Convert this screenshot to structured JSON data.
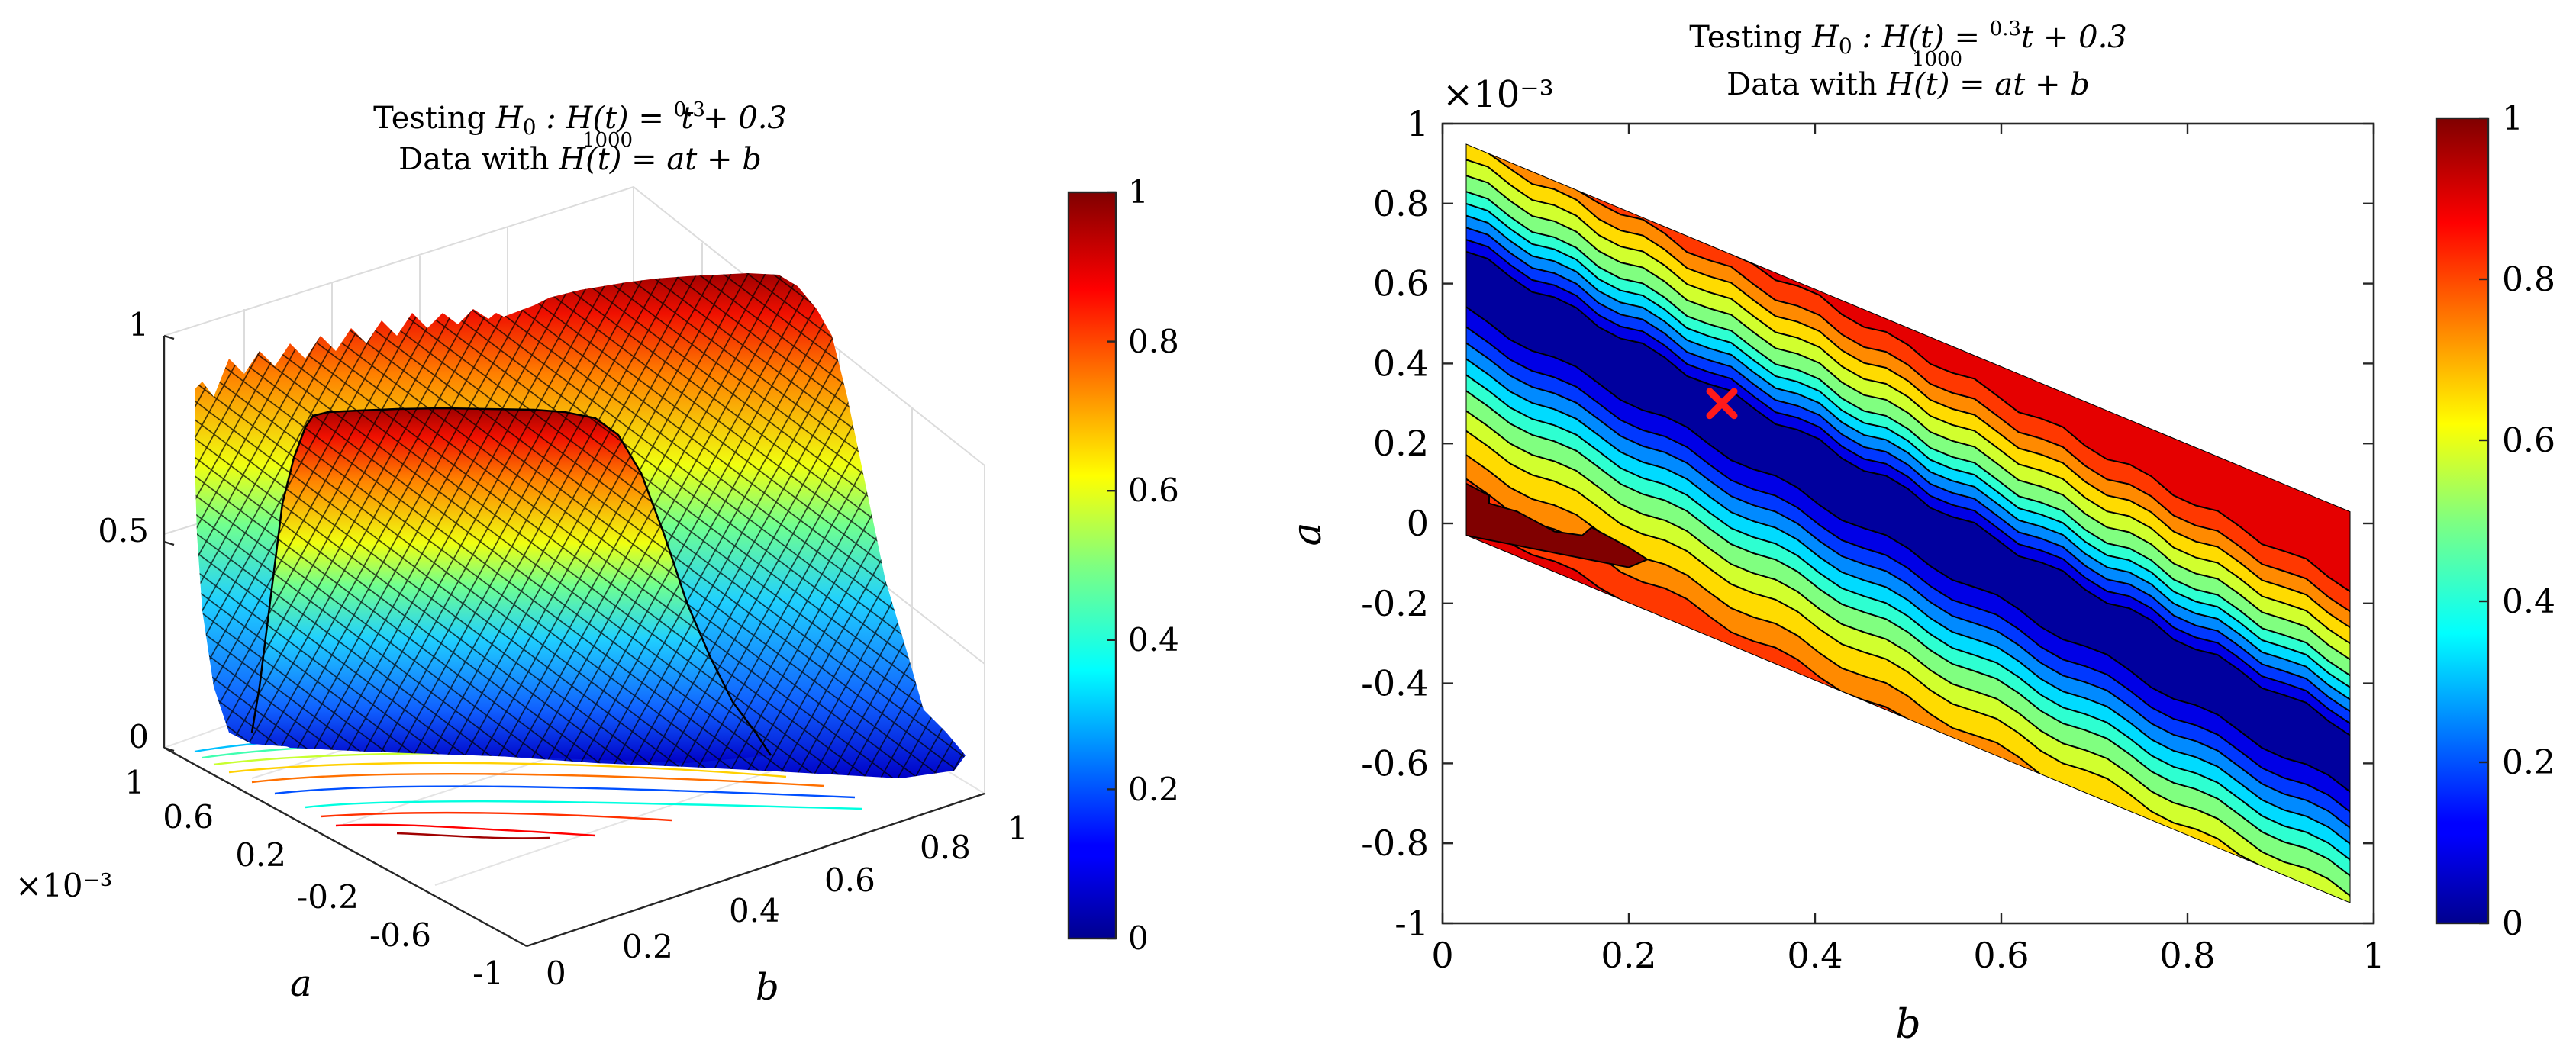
{
  "chart_data": [
    {
      "type": "surface",
      "title": "Testing H₀ : H(t) = (0.3/1000)t + 0.3",
      "title_parts": {
        "prefix": "Testing ",
        "h0": "H",
        "h0_sub": "0",
        "mid": " : H(t) = ",
        "frac_num": "0.3",
        "frac_den": "1000",
        "suffix": "t + 0.3"
      },
      "subtitle": "Data with H(t) = at + b",
      "subtitle_parts": {
        "prefix": "Data with ",
        "expr": "H(t) = at + b"
      },
      "xlabel": "b",
      "ylabel": "a",
      "a_scale_label": "×10⁻³",
      "b_ticks": [
        "0",
        "0.2",
        "0.4",
        "0.6",
        "0.8",
        "1"
      ],
      "a_ticks": [
        "1",
        "0.6",
        "0.2",
        "-0.2",
        "-0.6",
        "-1"
      ],
      "z_ticks": [
        "0",
        "0.5",
        "1"
      ],
      "zlim": [
        0,
        1
      ],
      "colorbar_ticks": [
        "0",
        "0.2",
        "0.4",
        "0.6",
        "0.8",
        "1"
      ],
      "colormap": "jet"
    },
    {
      "type": "contour",
      "title": "Testing H₀ : H(t) = (0.3/1000)t + 0.3",
      "title_parts": {
        "prefix": "Testing ",
        "h0": "H",
        "h0_sub": "0",
        "mid": " : H(t) = ",
        "frac_num": "0.3",
        "frac_den": "1000",
        "suffix": "t + 0.3"
      },
      "subtitle": "Data with H(t) = at + b",
      "subtitle_parts": {
        "prefix": "Data with ",
        "expr": "H(t) = at + b"
      },
      "xlabel": "b",
      "ylabel": "a",
      "a_scale_label": "×10⁻³",
      "xlim": [
        0,
        1
      ],
      "ylim": [
        -1,
        1
      ],
      "x_ticks": [
        0,
        0.2,
        0.4,
        0.6,
        0.8,
        1
      ],
      "x_tick_labels": [
        "0",
        "0.2",
        "0.4",
        "0.6",
        "0.8",
        "1"
      ],
      "y_ticks": [
        1,
        0.8,
        0.6,
        0.4,
        0.2,
        0,
        -0.2,
        -0.4,
        -0.6,
        -0.8,
        -1
      ],
      "y_tick_labels": [
        "1",
        "0.8",
        "0.6",
        "0.4",
        "0.2",
        "0",
        "-0.2",
        "-0.4",
        "-0.6",
        "-0.8",
        "-1"
      ],
      "levels": [
        0.05,
        0.1,
        0.2,
        0.3,
        0.4,
        0.5,
        0.6,
        0.7,
        0.8,
        0.9,
        0.95
      ],
      "domain": {
        "b_min": 0.025,
        "b_max": 0.975,
        "a_top_at_bmin": 0.95,
        "a_top_at_bmax": 0.03,
        "a_bot_at_bmin": -0.03,
        "a_bot_at_bmax": -0.95
      },
      "valley_center": {
        "a_at_bmin": 0.62,
        "a_at_bmax": -0.58
      },
      "marker": {
        "b": 0.3,
        "a": 0.3,
        "symbol": "x",
        "color": "#ff1a1a"
      },
      "colorbar_ticks": [
        "0",
        "0.2",
        "0.4",
        "0.6",
        "0.8",
        "1"
      ],
      "colormap": "jet"
    }
  ]
}
